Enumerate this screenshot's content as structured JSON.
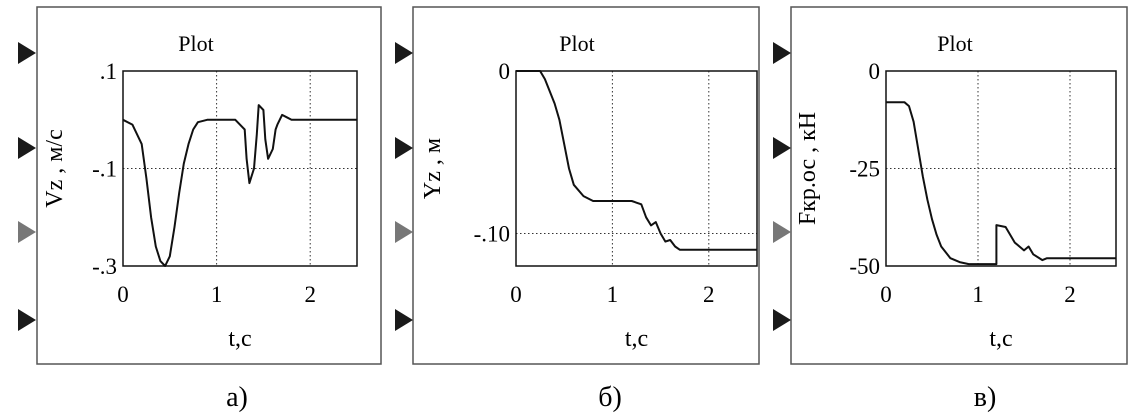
{
  "chart_data": [
    {
      "type": "line",
      "title": "Plot",
      "caption": "а)",
      "xlabel": "t,c",
      "ylabel": "Vz , м/с",
      "xlim": [
        0,
        2.5
      ],
      "ylim": [
        -0.3,
        0.1
      ],
      "xticks": [
        0,
        1,
        2
      ],
      "xtick_labels": [
        "0",
        "1",
        "2"
      ],
      "yticks": [
        0.1,
        -0.1,
        -0.3
      ],
      "ytick_labels": [
        ".1",
        "-.1",
        "-.3"
      ],
      "grid": true,
      "series": [
        {
          "x": [
            0,
            0.1,
            0.2,
            0.25,
            0.3,
            0.35,
            0.4,
            0.45,
            0.5,
            0.55,
            0.6,
            0.65,
            0.7,
            0.75,
            0.8,
            0.9,
            1.0,
            1.1,
            1.2,
            1.3,
            1.32,
            1.35,
            1.4,
            1.43,
            1.45,
            1.5,
            1.52,
            1.55,
            1.6,
            1.63,
            1.65,
            1.7,
            1.75,
            1.8,
            1.9,
            2.0,
            2.5
          ],
          "y": [
            0,
            -0.01,
            -0.05,
            -0.12,
            -0.2,
            -0.26,
            -0.29,
            -0.3,
            -0.28,
            -0.22,
            -0.15,
            -0.09,
            -0.05,
            -0.02,
            -0.005,
            0,
            0,
            0,
            0,
            -0.02,
            -0.08,
            -0.13,
            -0.1,
            -0.03,
            0.03,
            0.02,
            -0.04,
            -0.08,
            -0.06,
            -0.02,
            -0.01,
            0.01,
            0.005,
            0,
            0,
            0,
            0
          ]
        }
      ]
    },
    {
      "type": "line",
      "title": "Plot",
      "caption": "б)",
      "xlabel": "t,c",
      "ylabel": "Yz , м",
      "xlim": [
        0,
        2.5
      ],
      "ylim": [
        -0.12,
        0
      ],
      "xticks": [
        0,
        1,
        2
      ],
      "xtick_labels": [
        "0",
        "1",
        "2"
      ],
      "yticks": [
        0,
        -0.1
      ],
      "ytick_labels": [
        "0",
        "-.10"
      ],
      "grid": true,
      "series": [
        {
          "x": [
            0,
            0.25,
            0.3,
            0.4,
            0.45,
            0.5,
            0.55,
            0.6,
            0.7,
            0.8,
            0.9,
            1.0,
            1.1,
            1.2,
            1.3,
            1.35,
            1.4,
            1.45,
            1.5,
            1.55,
            1.6,
            1.65,
            1.7,
            1.8,
            2.0,
            2.5
          ],
          "y": [
            0,
            0,
            -0.005,
            -0.02,
            -0.03,
            -0.045,
            -0.06,
            -0.07,
            -0.077,
            -0.08,
            -0.08,
            -0.08,
            -0.08,
            -0.08,
            -0.082,
            -0.09,
            -0.095,
            -0.093,
            -0.1,
            -0.105,
            -0.104,
            -0.108,
            -0.11,
            -0.11,
            -0.11,
            -0.11
          ]
        }
      ]
    },
    {
      "type": "line",
      "title": "Plot",
      "caption": "в)",
      "xlabel": "t,c",
      "ylabel": "Fкр.ос , кН",
      "xlim": [
        0,
        2.5
      ],
      "ylim": [
        -50,
        0
      ],
      "xticks": [
        0,
        1,
        2
      ],
      "xtick_labels": [
        "0",
        "1",
        "2"
      ],
      "yticks": [
        0,
        -25,
        -50
      ],
      "ytick_labels": [
        "0",
        "-25",
        "-50"
      ],
      "grid": true,
      "series": [
        {
          "x": [
            0,
            0.2,
            0.25,
            0.3,
            0.35,
            0.4,
            0.45,
            0.5,
            0.55,
            0.6,
            0.7,
            0.8,
            0.9,
            1.0,
            1.1,
            1.2,
            1.2,
            1.3,
            1.4,
            1.5,
            1.55,
            1.6,
            1.7,
            1.75,
            1.8,
            2.0,
            2.5
          ],
          "y": [
            -8,
            -8,
            -9,
            -13,
            -20,
            -27,
            -33,
            -38,
            -42,
            -45,
            -48,
            -49,
            -49.5,
            -49.5,
            -49.5,
            -49.5,
            -39.5,
            -40,
            -44,
            -46,
            -45,
            -47,
            -48.5,
            -48,
            -48,
            -48,
            -48
          ]
        }
      ]
    }
  ]
}
